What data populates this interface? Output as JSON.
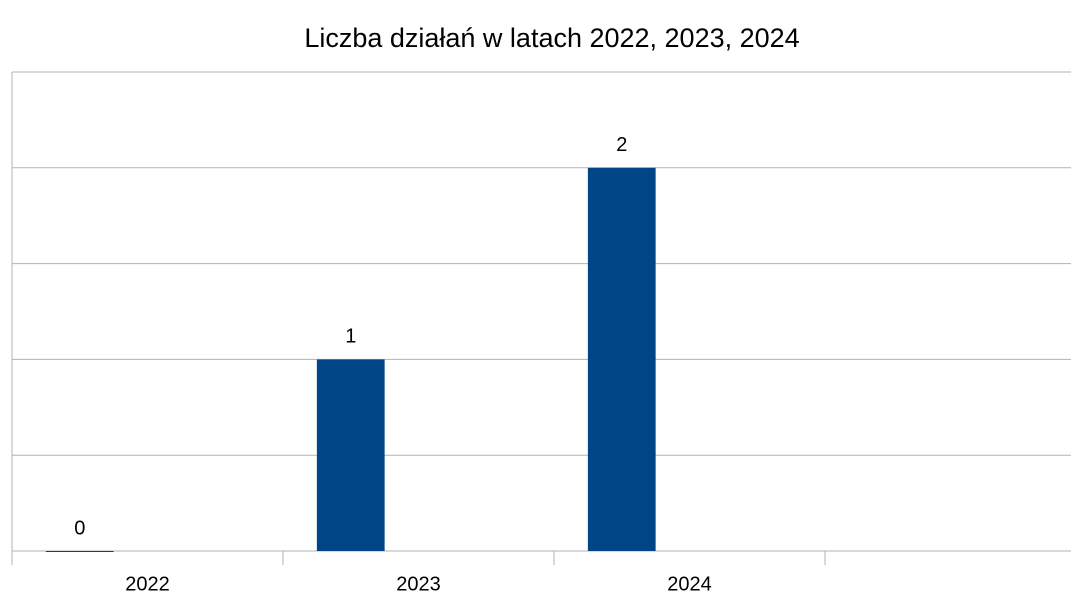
{
  "chart_data": {
    "type": "bar",
    "title": "Liczba działań w latach 2022, 2023, 2024",
    "categories": [
      "2022",
      "2023",
      "2024",
      null
    ],
    "values": [
      0,
      1,
      2,
      null
    ],
    "color": "#004586",
    "ylim": [
      0,
      2.5
    ],
    "yticks": [
      0,
      0.5,
      1,
      1.5,
      2,
      2.5
    ],
    "grid": true,
    "value_labels_shown": true
  }
}
